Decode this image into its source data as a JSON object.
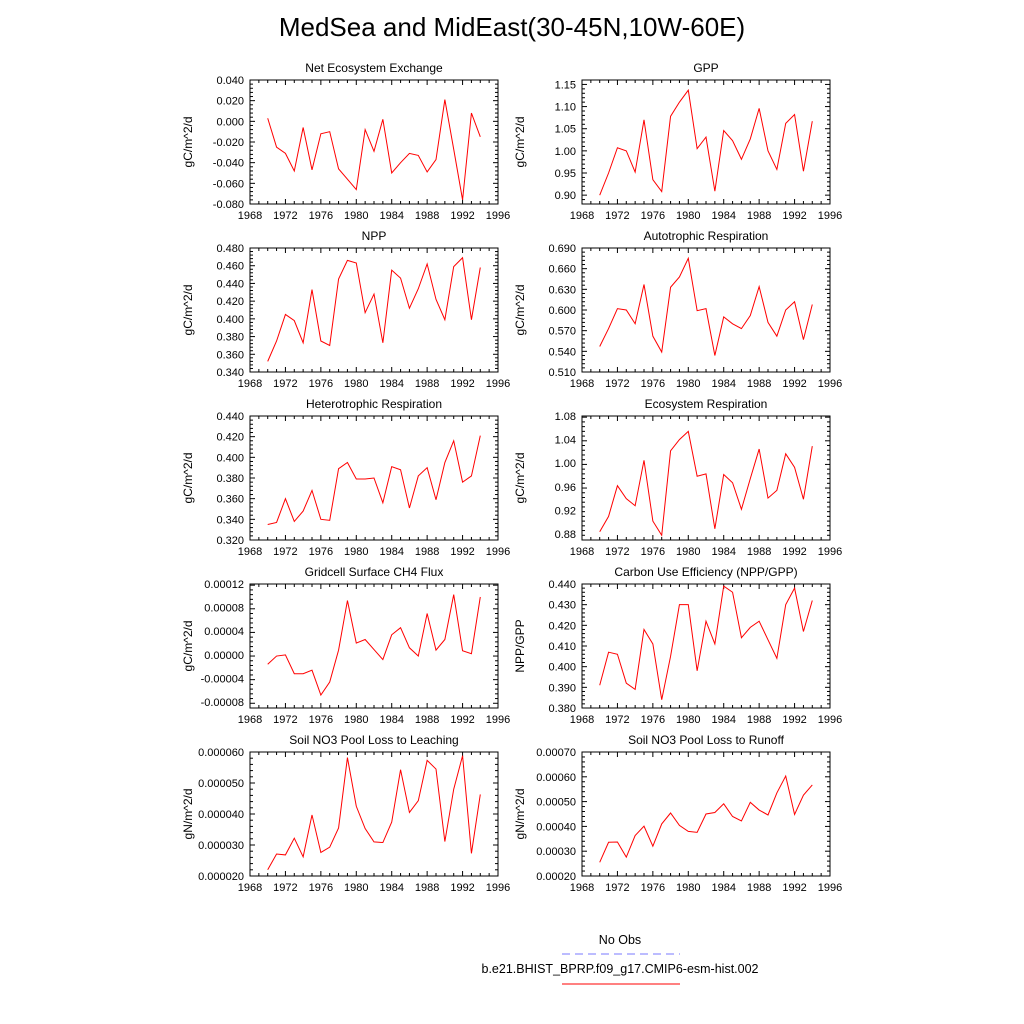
{
  "title": "MedSea and MidEast(30-45N,10W-60E)",
  "colors": {
    "model_line": "#ff0000",
    "obs_line": "#7a7aff",
    "axes": "#000000"
  },
  "legend": {
    "obs_label": "No Obs",
    "model_label": "b.e21.BHIST_BPRP.f09_g17.CMIP6-esm-hist.002"
  },
  "chart_data": [
    {
      "type": "line",
      "title": "Net Ecosystem Exchange",
      "xlabel": "",
      "ylabel": "gC/m^2/d",
      "xlim": [
        1968,
        1996
      ],
      "ylim": [
        -0.08,
        0.04
      ],
      "xticks": [
        "1968",
        "1972",
        "1976",
        "1980",
        "1984",
        "1988",
        "1992",
        "1996"
      ],
      "yticks": [
        "0.040",
        "0.020",
        "0.000",
        "-0.020",
        "-0.040",
        "-0.060",
        "-0.080"
      ],
      "x": [
        1970,
        1971,
        1972,
        1973,
        1974,
        1975,
        1976,
        1977,
        1978,
        1979,
        1980,
        1981,
        1982,
        1983,
        1984,
        1985,
        1986,
        1987,
        1988,
        1989,
        1990,
        1991,
        1992,
        1993,
        1994
      ],
      "series": [
        {
          "values": [
            0.003,
            -0.025,
            -0.031,
            -0.048,
            -0.006,
            -0.047,
            -0.012,
            -0.01,
            -0.046,
            -0.056,
            -0.066,
            -0.008,
            -0.029,
            0.002,
            -0.05,
            -0.04,
            -0.031,
            -0.033,
            -0.049,
            -0.037,
            0.021,
            -0.027,
            -0.076,
            0.008,
            -0.015
          ]
        }
      ]
    },
    {
      "type": "line",
      "title": "GPP",
      "xlabel": "",
      "ylabel": "gC/m^2/d",
      "xlim": [
        1968,
        1996
      ],
      "ylim": [
        0.88,
        1.16
      ],
      "xticks": [
        "1968",
        "1972",
        "1976",
        "1980",
        "1984",
        "1988",
        "1992",
        "1996"
      ],
      "yticks": [
        "1.15",
        "1.10",
        "1.05",
        "1.00",
        "0.95",
        "0.90"
      ],
      "x": [
        1970,
        1971,
        1972,
        1973,
        1974,
        1975,
        1976,
        1977,
        1978,
        1979,
        1980,
        1981,
        1982,
        1983,
        1984,
        1985,
        1986,
        1987,
        1988,
        1989,
        1990,
        1991,
        1992,
        1993,
        1994
      ],
      "series": [
        {
          "values": [
            0.9,
            0.95,
            1.007,
            1.0,
            0.952,
            1.07,
            0.935,
            0.908,
            1.078,
            1.11,
            1.137,
            1.005,
            1.031,
            0.909,
            1.046,
            1.023,
            0.981,
            1.027,
            1.096,
            1.0,
            0.958,
            1.062,
            1.082,
            0.954,
            1.067
          ]
        }
      ]
    },
    {
      "type": "line",
      "title": "NPP",
      "xlabel": "",
      "ylabel": "gC/m^2/d",
      "xlim": [
        1968,
        1996
      ],
      "ylim": [
        0.34,
        0.48
      ],
      "xticks": [
        "1968",
        "1972",
        "1976",
        "1980",
        "1984",
        "1988",
        "1992",
        "1996"
      ],
      "yticks": [
        "0.480",
        "0.460",
        "0.440",
        "0.420",
        "0.400",
        "0.380",
        "0.360",
        "0.340"
      ],
      "x": [
        1970,
        1971,
        1972,
        1973,
        1974,
        1975,
        1976,
        1977,
        1978,
        1979,
        1980,
        1981,
        1982,
        1983,
        1984,
        1985,
        1986,
        1987,
        1988,
        1989,
        1990,
        1991,
        1992,
        1993,
        1994
      ],
      "series": [
        {
          "values": [
            0.352,
            0.375,
            0.405,
            0.398,
            0.373,
            0.433,
            0.375,
            0.37,
            0.445,
            0.466,
            0.463,
            0.407,
            0.428,
            0.373,
            0.455,
            0.446,
            0.412,
            0.434,
            0.462,
            0.422,
            0.399,
            0.459,
            0.469,
            0.399,
            0.458
          ]
        }
      ]
    },
    {
      "type": "line",
      "title": "Autotrophic Respiration",
      "xlabel": "",
      "ylabel": "gC/m^2/d",
      "xlim": [
        1968,
        1996
      ],
      "ylim": [
        0.51,
        0.69
      ],
      "xticks": [
        "1968",
        "1972",
        "1976",
        "1980",
        "1984",
        "1988",
        "1992",
        "1996"
      ],
      "yticks": [
        "0.690",
        "0.660",
        "0.630",
        "0.600",
        "0.570",
        "0.540",
        "0.510"
      ],
      "x": [
        1970,
        1971,
        1972,
        1973,
        1974,
        1975,
        1976,
        1977,
        1978,
        1979,
        1980,
        1981,
        1982,
        1983,
        1984,
        1985,
        1986,
        1987,
        1988,
        1989,
        1990,
        1991,
        1992,
        1993,
        1994
      ],
      "series": [
        {
          "values": [
            0.547,
            0.573,
            0.602,
            0.6,
            0.58,
            0.637,
            0.562,
            0.539,
            0.633,
            0.648,
            0.675,
            0.599,
            0.602,
            0.534,
            0.59,
            0.58,
            0.573,
            0.592,
            0.634,
            0.582,
            0.562,
            0.6,
            0.612,
            0.557,
            0.608
          ]
        }
      ]
    },
    {
      "type": "line",
      "title": "Heterotrophic Respiration",
      "xlabel": "",
      "ylabel": "gC/m^2/d",
      "xlim": [
        1968,
        1996
      ],
      "ylim": [
        0.32,
        0.44
      ],
      "xticks": [
        "1968",
        "1972",
        "1976",
        "1980",
        "1984",
        "1988",
        "1992",
        "1996"
      ],
      "yticks": [
        "0.440",
        "0.420",
        "0.400",
        "0.380",
        "0.360",
        "0.340",
        "0.320"
      ],
      "x": [
        1970,
        1971,
        1972,
        1973,
        1974,
        1975,
        1976,
        1977,
        1978,
        1979,
        1980,
        1981,
        1982,
        1983,
        1984,
        1985,
        1986,
        1987,
        1988,
        1989,
        1990,
        1991,
        1992,
        1993,
        1994
      ],
      "series": [
        {
          "values": [
            0.335,
            0.337,
            0.36,
            0.338,
            0.348,
            0.368,
            0.34,
            0.339,
            0.389,
            0.395,
            0.379,
            0.379,
            0.38,
            0.356,
            0.391,
            0.388,
            0.351,
            0.382,
            0.39,
            0.359,
            0.395,
            0.416,
            0.376,
            0.382,
            0.421
          ]
        }
      ]
    },
    {
      "type": "line",
      "title": "Ecosystem Respiration",
      "xlabel": "",
      "ylabel": "gC/m^2/d",
      "xlim": [
        1968,
        1996
      ],
      "ylim": [
        0.87,
        1.08
      ],
      "xticks": [
        "1968",
        "1972",
        "1976",
        "1980",
        "1984",
        "1988",
        "1992",
        "1996"
      ],
      "yticks": [
        "1.08",
        "1.04",
        "1.00",
        "0.96",
        "0.92",
        "0.88"
      ],
      "x": [
        1970,
        1971,
        1972,
        1973,
        1974,
        1975,
        1976,
        1977,
        1978,
        1979,
        1980,
        1981,
        1982,
        1983,
        1984,
        1985,
        1986,
        1987,
        1988,
        1989,
        1990,
        1991,
        1992,
        1993,
        1994
      ],
      "series": [
        {
          "values": [
            0.884,
            0.91,
            0.962,
            0.94,
            0.928,
            1.005,
            0.902,
            0.878,
            1.021,
            1.04,
            1.054,
            0.978,
            0.982,
            0.889,
            0.981,
            0.967,
            0.922,
            0.974,
            1.024,
            0.941,
            0.954,
            1.016,
            0.993,
            0.939,
            1.029
          ]
        }
      ]
    },
    {
      "type": "line",
      "title": "Gridcell Surface CH4 Flux",
      "xlabel": "",
      "ylabel": "gC/m^2/d",
      "xlim": [
        1968,
        1996
      ],
      "ylim": [
        -9e-05,
        0.00012
      ],
      "xticks": [
        "1968",
        "1972",
        "1976",
        "1980",
        "1984",
        "1988",
        "1992",
        "1996"
      ],
      "yticks": [
        "0.00012",
        "0.00008",
        "0.00004",
        "0.00000",
        "-0.00004",
        "-0.00008"
      ],
      "x": [
        1970,
        1971,
        1972,
        1973,
        1974,
        1975,
        1976,
        1977,
        1978,
        1979,
        1980,
        1981,
        1982,
        1983,
        1984,
        1985,
        1986,
        1987,
        1988,
        1989,
        1990,
        1991,
        1992,
        1993,
        1994
      ],
      "series": [
        {
          "values": [
            -1.6e-05,
            -2e-06,
            0.0,
            -3.2e-05,
            -3.2e-05,
            -2.6e-05,
            -6.8e-05,
            -4.6e-05,
            8e-06,
            9.2e-05,
            2e-05,
            2.6e-05,
            9e-06,
            -8e-06,
            3.4e-05,
            4.6e-05,
            1.2e-05,
            -2e-06,
            7e-05,
            8e-06,
            2.6e-05,
            0.000102,
            7e-06,
            2e-06,
            9.8e-05
          ]
        }
      ]
    },
    {
      "type": "line",
      "title": "Carbon Use Efficiency (NPP/GPP)",
      "xlabel": "",
      "ylabel": "NPP/GPP",
      "xlim": [
        1968,
        1996
      ],
      "ylim": [
        0.38,
        0.44
      ],
      "xticks": [
        "1968",
        "1972",
        "1976",
        "1980",
        "1984",
        "1988",
        "1992",
        "1996"
      ],
      "yticks": [
        "0.440",
        "0.430",
        "0.420",
        "0.410",
        "0.400",
        "0.390",
        "0.380"
      ],
      "x": [
        1970,
        1971,
        1972,
        1973,
        1974,
        1975,
        1976,
        1977,
        1978,
        1979,
        1980,
        1981,
        1982,
        1983,
        1984,
        1985,
        1986,
        1987,
        1988,
        1989,
        1990,
        1991,
        1992,
        1993,
        1994
      ],
      "series": [
        {
          "values": [
            0.391,
            0.407,
            0.406,
            0.392,
            0.389,
            0.418,
            0.411,
            0.384,
            0.405,
            0.43,
            0.43,
            0.398,
            0.422,
            0.411,
            0.439,
            0.436,
            0.414,
            0.419,
            0.422,
            0.413,
            0.404,
            0.43,
            0.438,
            0.417,
            0.432
          ]
        }
      ]
    },
    {
      "type": "line",
      "title": "Soil NO3 Pool Loss to Leaching",
      "xlabel": "",
      "ylabel": "gN/m^2/d",
      "xlim": [
        1968,
        1996
      ],
      "ylim": [
        2e-05,
        6e-05
      ],
      "xticks": [
        "1968",
        "1972",
        "1976",
        "1980",
        "1984",
        "1988",
        "1992",
        "1996"
      ],
      "yticks": [
        "0.000060",
        "0.000050",
        "0.000040",
        "0.000030",
        "0.000020"
      ],
      "x": [
        1970,
        1971,
        1972,
        1973,
        1974,
        1975,
        1976,
        1977,
        1978,
        1979,
        1980,
        1981,
        1982,
        1983,
        1984,
        1985,
        1986,
        1987,
        1988,
        1989,
        1990,
        1991,
        1992,
        1993,
        1994
      ],
      "series": [
        {
          "values": [
            2.2e-05,
            2.71e-05,
            2.68e-05,
            3.22e-05,
            2.62e-05,
            3.97e-05,
            2.76e-05,
            2.93e-05,
            3.55e-05,
            5.82e-05,
            4.25e-05,
            3.53e-05,
            3.1e-05,
            3.08e-05,
            3.74e-05,
            5.43e-05,
            4.05e-05,
            4.43e-05,
            5.73e-05,
            5.45e-05,
            3.11e-05,
            4.8e-05,
            5.88e-05,
            2.73e-05,
            4.63e-05
          ]
        }
      ]
    },
    {
      "type": "line",
      "title": "Soil NO3 Pool Loss to Runoff",
      "xlabel": "",
      "ylabel": "gN/m^2/d",
      "xlim": [
        1968,
        1996
      ],
      "ylim": [
        0.0002,
        0.0007
      ],
      "xticks": [
        "1968",
        "1972",
        "1976",
        "1980",
        "1984",
        "1988",
        "1992",
        "1996"
      ],
      "yticks": [
        "0.00070",
        "0.00060",
        "0.00050",
        "0.00040",
        "0.00030",
        "0.00020"
      ],
      "x": [
        1970,
        1971,
        1972,
        1973,
        1974,
        1975,
        1976,
        1977,
        1978,
        1979,
        1980,
        1981,
        1982,
        1983,
        1984,
        1985,
        1986,
        1987,
        1988,
        1989,
        1990,
        1991,
        1992,
        1993,
        1994
      ],
      "series": [
        {
          "values": [
            0.000255,
            0.000336,
            0.000337,
            0.000276,
            0.000363,
            0.000401,
            0.00032,
            0.00041,
            0.000454,
            0.000404,
            0.00038,
            0.000376,
            0.00045,
            0.000456,
            0.000491,
            0.00044,
            0.000422,
            0.000497,
            0.000466,
            0.000446,
            0.000535,
            0.000603,
            0.000448,
            0.000526,
            0.000567
          ]
        }
      ]
    }
  ]
}
